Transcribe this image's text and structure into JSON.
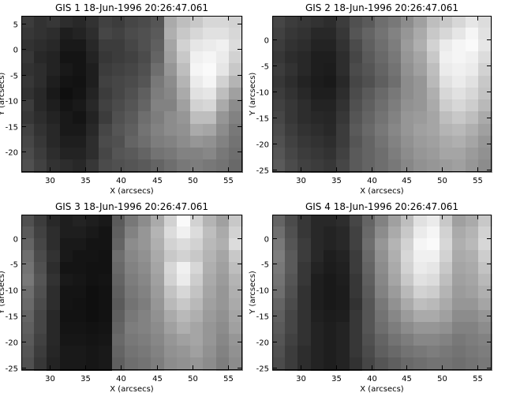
{
  "chart_data": [
    {
      "type": "heatmap",
      "title": "GIS 1 18-Jun-1996 20:26:47.061",
      "xlabel": "X (arcsecs)",
      "ylabel": "Y (arcsecs)",
      "xlim": [
        26,
        57
      ],
      "ylim": [
        -24,
        6.5
      ],
      "xticks": [
        30,
        35,
        40,
        45,
        50,
        55
      ],
      "yticks": [
        5,
        0,
        -5,
        -10,
        -15,
        -20
      ],
      "colormap": "grayscale",
      "rows_top_to_bottom": [
        [
          60,
          50,
          55,
          45,
          40,
          50,
          65,
          60,
          70,
          75,
          85,
          170,
          190,
          200,
          215,
          215,
          210
        ],
        [
          55,
          50,
          45,
          30,
          35,
          45,
          70,
          65,
          75,
          80,
          90,
          175,
          200,
          215,
          225,
          225,
          215
        ],
        [
          50,
          45,
          40,
          25,
          25,
          40,
          60,
          60,
          70,
          80,
          95,
          165,
          210,
          230,
          235,
          240,
          220
        ],
        [
          55,
          40,
          35,
          20,
          20,
          35,
          55,
          60,
          65,
          75,
          100,
          160,
          200,
          240,
          245,
          235,
          210
        ],
        [
          50,
          45,
          35,
          25,
          20,
          30,
          60,
          65,
          70,
          80,
          110,
          150,
          190,
          245,
          250,
          230,
          200
        ],
        [
          55,
          45,
          30,
          20,
          18,
          30,
          65,
          70,
          75,
          85,
          120,
          140,
          180,
          235,
          245,
          210,
          180
        ],
        [
          50,
          40,
          25,
          15,
          20,
          35,
          60,
          70,
          80,
          95,
          125,
          135,
          170,
          225,
          230,
          190,
          160
        ],
        [
          60,
          40,
          30,
          20,
          25,
          40,
          65,
          75,
          85,
          100,
          130,
          130,
          160,
          210,
          215,
          170,
          140
        ],
        [
          55,
          45,
          35,
          25,
          20,
          35,
          60,
          80,
          90,
          110,
          125,
          140,
          150,
          190,
          190,
          150,
          130
        ],
        [
          65,
          50,
          40,
          25,
          25,
          40,
          70,
          85,
          95,
          115,
          130,
          140,
          145,
          170,
          165,
          140,
          120
        ],
        [
          70,
          55,
          40,
          30,
          30,
          45,
          75,
          80,
          100,
          110,
          125,
          130,
          140,
          150,
          145,
          130,
          115
        ],
        [
          75,
          60,
          45,
          35,
          35,
          45,
          70,
          85,
          90,
          100,
          115,
          120,
          130,
          130,
          135,
          120,
          110
        ],
        [
          80,
          65,
          50,
          45,
          40,
          55,
          75,
          80,
          85,
          90,
          100,
          110,
          120,
          125,
          120,
          115,
          105
        ]
      ]
    },
    {
      "type": "heatmap",
      "title": "GIS 2 18-Jun-1996 20:26:47.061",
      "xlabel": "X (arcsecs)",
      "ylabel": "Y (arcsecs)",
      "xlim": [
        26,
        57
      ],
      "ylim": [
        -25.5,
        4.5
      ],
      "xticks": [
        30,
        35,
        40,
        45,
        50,
        55
      ],
      "yticks": [
        0,
        -5,
        -10,
        -15,
        -20,
        -25
      ],
      "colormap": "grayscale",
      "rows_top_to_bottom": [
        [
          70,
          60,
          55,
          50,
          45,
          60,
          80,
          90,
          110,
          120,
          140,
          160,
          190,
          200,
          215,
          230,
          220
        ],
        [
          65,
          55,
          50,
          40,
          40,
          55,
          85,
          100,
          115,
          130,
          150,
          170,
          200,
          215,
          230,
          245,
          225
        ],
        [
          60,
          50,
          45,
          35,
          35,
          50,
          75,
          95,
          110,
          125,
          155,
          175,
          210,
          235,
          245,
          250,
          230
        ],
        [
          55,
          45,
          40,
          30,
          30,
          45,
          70,
          90,
          105,
          120,
          150,
          165,
          200,
          240,
          245,
          240,
          220
        ],
        [
          60,
          50,
          40,
          30,
          28,
          45,
          75,
          85,
          100,
          115,
          145,
          160,
          190,
          235,
          240,
          235,
          210
        ],
        [
          55,
          45,
          35,
          28,
          25,
          40,
          70,
          80,
          95,
          110,
          140,
          150,
          185,
          225,
          235,
          225,
          200
        ],
        [
          60,
          50,
          40,
          30,
          30,
          45,
          75,
          90,
          105,
          120,
          140,
          150,
          175,
          215,
          225,
          215,
          195
        ],
        [
          65,
          55,
          45,
          35,
          35,
          50,
          80,
          95,
          110,
          125,
          145,
          150,
          170,
          205,
          215,
          205,
          185
        ],
        [
          70,
          55,
          45,
          40,
          38,
          55,
          85,
          100,
          115,
          130,
          150,
          155,
          165,
          190,
          200,
          190,
          170
        ],
        [
          75,
          60,
          50,
          45,
          40,
          60,
          90,
          105,
          120,
          135,
          150,
          160,
          165,
          180,
          185,
          175,
          160
        ],
        [
          80,
          65,
          55,
          50,
          45,
          60,
          85,
          100,
          115,
          130,
          145,
          155,
          160,
          170,
          175,
          165,
          150
        ],
        [
          85,
          70,
          60,
          55,
          50,
          65,
          90,
          100,
          110,
          125,
          140,
          150,
          155,
          165,
          165,
          155,
          145
        ],
        [
          90,
          75,
          65,
          60,
          55,
          70,
          90,
          100,
          110,
          120,
          135,
          145,
          150,
          155,
          160,
          150,
          140
        ]
      ]
    },
    {
      "type": "heatmap",
      "title": "GIS 3 18-Jun-1996 20:26:47.061",
      "xlabel": "X (arcsecs)",
      "ylabel": "Y (arcsecs)",
      "xlim": [
        26,
        57
      ],
      "ylim": [
        -25.5,
        4.5
      ],
      "xticks": [
        30,
        35,
        40,
        45,
        50,
        55
      ],
      "yticks": [
        0,
        -5,
        -10,
        -15,
        -20,
        -25
      ],
      "colormap": "grayscale",
      "rows_top_to_bottom": [
        [
          80,
          60,
          40,
          30,
          35,
          30,
          25,
          90,
          120,
          140,
          170,
          210,
          250,
          210,
          180,
          160,
          200
        ],
        [
          90,
          65,
          45,
          30,
          30,
          25,
          20,
          95,
          130,
          150,
          180,
          220,
          240,
          220,
          190,
          170,
          210
        ],
        [
          100,
          70,
          45,
          25,
          25,
          20,
          20,
          100,
          140,
          150,
          175,
          210,
          220,
          210,
          185,
          175,
          220
        ],
        [
          110,
          75,
          50,
          25,
          20,
          20,
          18,
          110,
          135,
          145,
          170,
          200,
          210,
          200,
          180,
          165,
          200
        ],
        [
          115,
          80,
          45,
          20,
          20,
          18,
          18,
          105,
          130,
          140,
          165,
          215,
          240,
          215,
          175,
          160,
          190
        ],
        [
          120,
          85,
          50,
          25,
          22,
          18,
          20,
          100,
          125,
          135,
          160,
          210,
          235,
          205,
          170,
          155,
          180
        ],
        [
          110,
          80,
          45,
          20,
          20,
          15,
          18,
          95,
          120,
          130,
          155,
          195,
          215,
          195,
          165,
          150,
          175
        ],
        [
          105,
          75,
          45,
          20,
          18,
          15,
          18,
          90,
          115,
          125,
          150,
          185,
          200,
          185,
          160,
          150,
          170
        ],
        [
          100,
          70,
          40,
          18,
          18,
          15,
          18,
          95,
          120,
          130,
          145,
          170,
          185,
          175,
          155,
          145,
          165
        ],
        [
          95,
          70,
          40,
          20,
          20,
          18,
          20,
          100,
          125,
          130,
          140,
          160,
          175,
          165,
          150,
          140,
          160
        ],
        [
          90,
          65,
          40,
          22,
          22,
          20,
          22,
          105,
          120,
          125,
          135,
          150,
          160,
          165,
          150,
          135,
          150
        ],
        [
          85,
          60,
          38,
          25,
          25,
          22,
          25,
          100,
          115,
          120,
          130,
          145,
          150,
          160,
          145,
          130,
          145
        ],
        [
          80,
          55,
          35,
          25,
          25,
          22,
          25,
          95,
          110,
          115,
          125,
          140,
          145,
          150,
          140,
          125,
          140
        ]
      ]
    },
    {
      "type": "heatmap",
      "title": "GIS 4 18-Jun-1996 20:26:47.061",
      "xlabel": "X (arcsecs)",
      "ylabel": "Y (arcsecs)",
      "xlim": [
        26,
        57
      ],
      "ylim": [
        -25.5,
        4.5
      ],
      "xticks": [
        30,
        35,
        40,
        45,
        50,
        55
      ],
      "yticks": [
        0,
        -5,
        -10,
        -15,
        -20,
        -25
      ],
      "colormap": "grayscale",
      "rows_top_to_bottom": [
        [
          100,
          75,
          55,
          40,
          40,
          45,
          70,
          100,
          130,
          160,
          190,
          225,
          235,
          200,
          160,
          170,
          200
        ],
        [
          110,
          80,
          55,
          40,
          35,
          40,
          65,
          105,
          140,
          170,
          200,
          235,
          245,
          210,
          170,
          180,
          210
        ],
        [
          120,
          85,
          60,
          40,
          35,
          40,
          65,
          110,
          150,
          180,
          210,
          245,
          250,
          215,
          175,
          185,
          215
        ],
        [
          125,
          90,
          60,
          40,
          30,
          35,
          60,
          105,
          145,
          175,
          215,
          240,
          240,
          210,
          170,
          175,
          205
        ],
        [
          120,
          90,
          55,
          35,
          28,
          32,
          60,
          100,
          140,
          170,
          210,
          235,
          230,
          200,
          165,
          170,
          195
        ],
        [
          115,
          85,
          55,
          30,
          25,
          30,
          55,
          95,
          135,
          165,
          200,
          225,
          220,
          190,
          160,
          165,
          185
        ],
        [
          110,
          80,
          50,
          30,
          25,
          28,
          55,
          90,
          130,
          155,
          185,
          210,
          205,
          180,
          155,
          160,
          175
        ],
        [
          100,
          75,
          50,
          30,
          25,
          28,
          50,
          85,
          120,
          145,
          170,
          190,
          185,
          170,
          150,
          150,
          165
        ],
        [
          95,
          70,
          50,
          32,
          28,
          30,
          55,
          85,
          115,
          135,
          155,
          170,
          170,
          160,
          140,
          140,
          150
        ],
        [
          90,
          70,
          50,
          35,
          30,
          35,
          55,
          85,
          110,
          125,
          140,
          150,
          150,
          145,
          130,
          130,
          140
        ],
        [
          85,
          65,
          50,
          35,
          30,
          35,
          55,
          80,
          100,
          115,
          125,
          135,
          135,
          130,
          120,
          125,
          130
        ],
        [
          80,
          60,
          45,
          35,
          30,
          35,
          55,
          75,
          95,
          105,
          115,
          120,
          125,
          120,
          115,
          120,
          125
        ],
        [
          75,
          60,
          45,
          35,
          30,
          35,
          50,
          70,
          85,
          95,
          105,
          110,
          115,
          115,
          110,
          115,
          120
        ]
      ]
    }
  ]
}
